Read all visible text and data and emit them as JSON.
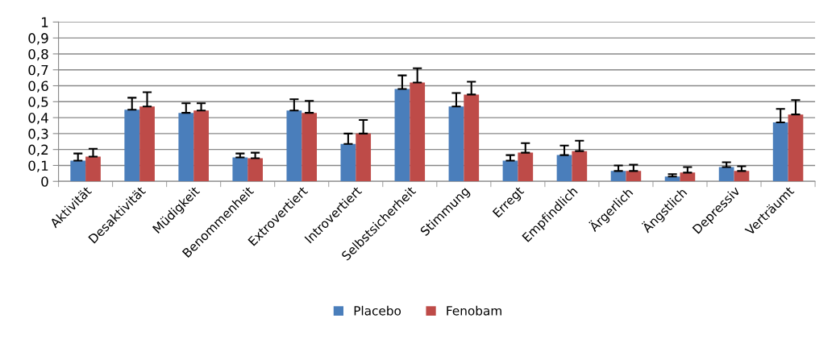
{
  "chart_data": {
    "type": "bar",
    "categories": [
      "Aktivität",
      "Desaktivität",
      "Müdigkeit",
      "Benommenheit",
      "Extrovertiert",
      "Introvertiert",
      "Selbstsicherheit",
      "Stimmung",
      "Erregt",
      "Empfindlich",
      "Ärgerlich",
      "Ängstlich",
      "Depressiv",
      "Verträumt"
    ],
    "series": [
      {
        "name": "Placebo",
        "color": "#4a7ebb",
        "values": [
          0.13,
          0.45,
          0.43,
          0.15,
          0.445,
          0.235,
          0.58,
          0.47,
          0.13,
          0.165,
          0.065,
          0.03,
          0.09,
          0.37
        ],
        "errors": [
          [
            0.13,
            0.175
          ],
          [
            0.45,
            0.525
          ],
          [
            0.43,
            0.49
          ],
          [
            0.15,
            0.175
          ],
          [
            0.445,
            0.515
          ],
          [
            0.235,
            0.3
          ],
          [
            0.58,
            0.665
          ],
          [
            0.47,
            0.555
          ],
          [
            0.13,
            0.165
          ],
          [
            0.165,
            0.225
          ],
          [
            0.065,
            0.1
          ],
          [
            0.03,
            0.045
          ],
          [
            0.09,
            0.12
          ],
          [
            0.37,
            0.455
          ]
        ]
      },
      {
        "name": "Fenobam",
        "color": "#be4b48",
        "values": [
          0.155,
          0.47,
          0.445,
          0.145,
          0.43,
          0.3,
          0.62,
          0.545,
          0.18,
          0.19,
          0.065,
          0.055,
          0.065,
          0.42
        ],
        "errors": [
          [
            0.155,
            0.205
          ],
          [
            0.47,
            0.56
          ],
          [
            0.445,
            0.49
          ],
          [
            0.145,
            0.18
          ],
          [
            0.43,
            0.505
          ],
          [
            0.3,
            0.385
          ],
          [
            0.62,
            0.71
          ],
          [
            0.545,
            0.625
          ],
          [
            0.18,
            0.24
          ],
          [
            0.19,
            0.255
          ],
          [
            0.065,
            0.105
          ],
          [
            0.055,
            0.09
          ],
          [
            0.065,
            0.095
          ],
          [
            0.42,
            0.51
          ]
        ]
      }
    ],
    "ylim": [
      0,
      1
    ],
    "yticks": [
      {
        "value": 0,
        "label": "0"
      },
      {
        "value": 0.1,
        "label": "0,1"
      },
      {
        "value": 0.2,
        "label": "0,2"
      },
      {
        "value": 0.3,
        "label": "0,3"
      },
      {
        "value": 0.4,
        "label": "0,4"
      },
      {
        "value": 0.5,
        "label": "0,5"
      },
      {
        "value": 0.6,
        "label": "0,6"
      },
      {
        "value": 0.7,
        "label": "0,7"
      },
      {
        "value": 0.8,
        "label": "0,8"
      },
      {
        "value": 0.9,
        "label": "0,9"
      },
      {
        "value": 1,
        "label": "1"
      }
    ],
    "grid": "y",
    "legend": "bottom"
  }
}
